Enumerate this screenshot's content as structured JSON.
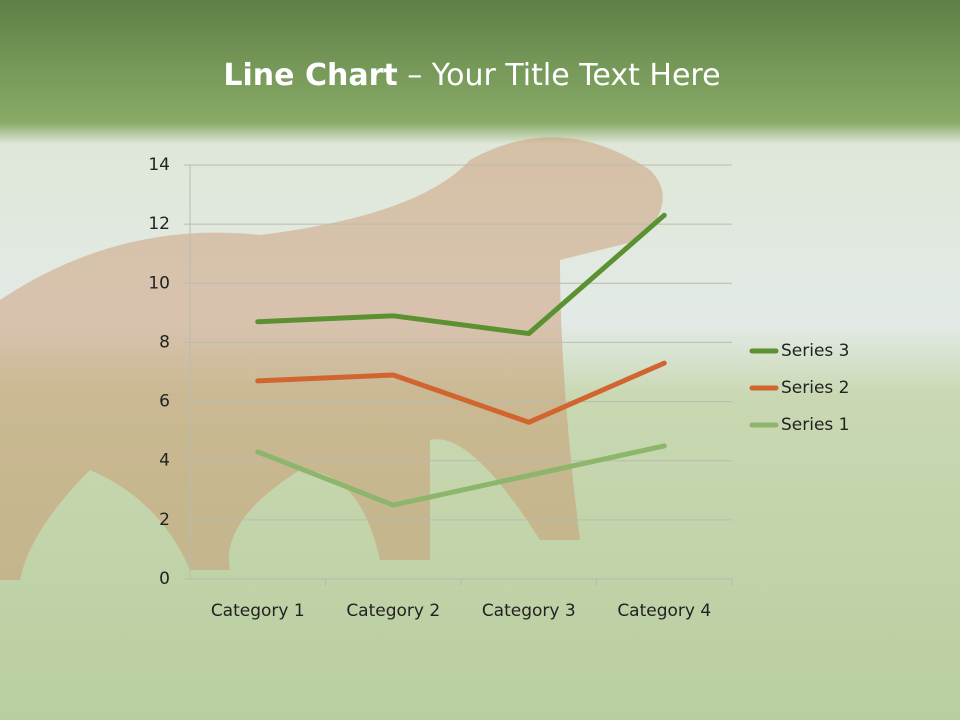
{
  "chart_data": {
    "type": "line",
    "title": {
      "bold": "Line Chart",
      "text": "– Your Title Text Here"
    },
    "categories": [
      "Category 1",
      "Category 2",
      "Category 3",
      "Category 4"
    ],
    "series": [
      {
        "name": "Series 1",
        "color": "#8db56b",
        "values": [
          4.3,
          2.5,
          3.5,
          4.5
        ]
      },
      {
        "name": "Series 2",
        "color": "#d2652f",
        "values": [
          6.7,
          6.9,
          5.3,
          7.3
        ]
      },
      {
        "name": "Series 3",
        "color": "#5b9130",
        "values": [
          8.7,
          8.9,
          8.3,
          12.3
        ]
      }
    ],
    "ylim": [
      0,
      14
    ],
    "yticks": [
      0,
      2,
      4,
      6,
      8,
      10,
      12,
      14
    ],
    "grid": true,
    "legend": "right"
  }
}
